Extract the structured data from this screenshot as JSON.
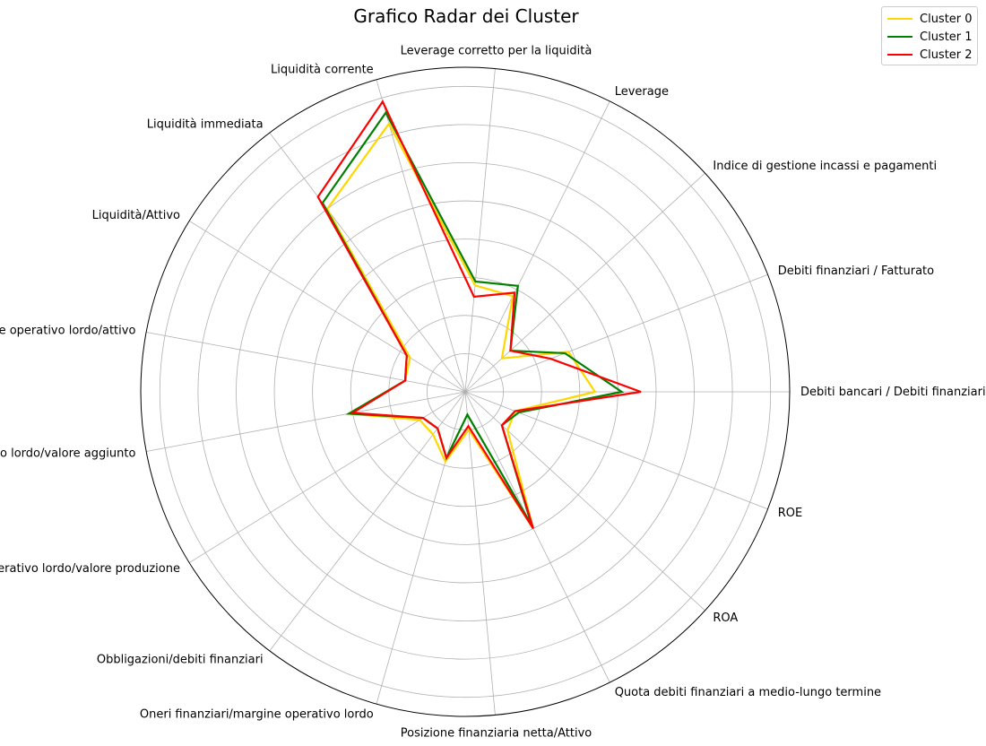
{
  "chart_data": {
    "type": "radar",
    "title": "Grafico Radar dei Cluster",
    "categories": [
      "Debiti bancari / Debiti finanziari",
      "Debiti finanziari / Fatturato",
      "Indice di gestione incassi e pagamenti",
      "Leverage",
      "Leverage corretto per la liquidità",
      "Liquidità corrente",
      "Liquidità immediata",
      "Liquidità/Attivo",
      "Margine operativo lordo/attivo",
      "Margine operativo lordo/valore aggiunto",
      "Margine operativo lordo/valore produzione",
      "Obbligazioni/debiti finanziari",
      "Oneri finanziari/margine operativo lordo",
      "Posizione finanziaria netta/Attivo",
      "Quota debiti finanziari a medio-lungo termine",
      "ROA",
      "ROE"
    ],
    "rlim": [
      0,
      0.85
    ],
    "rticks": [
      0.1,
      0.2,
      0.3,
      0.4,
      0.5,
      0.6,
      0.7,
      0.8
    ],
    "grid": true,
    "legend_position": "top-right",
    "series": [
      {
        "name": "Cluster 0",
        "color": "#FFD700",
        "values": [
          0.34,
          0.29,
          0.13,
          0.28,
          0.28,
          0.73,
          0.6,
          0.17,
          0.16,
          0.31,
          0.14,
          0.14,
          0.19,
          0.1,
          0.4,
          0.15,
          0.14
        ]
      },
      {
        "name": "Cluster 1",
        "color": "#008000",
        "values": [
          0.41,
          0.28,
          0.16,
          0.31,
          0.29,
          0.76,
          0.62,
          0.18,
          0.16,
          0.31,
          0.13,
          0.12,
          0.18,
          0.06,
          0.39,
          0.13,
          0.15
        ]
      },
      {
        "name": "Cluster 2",
        "color": "#FF0000",
        "values": [
          0.46,
          0.24,
          0.16,
          0.29,
          0.25,
          0.79,
          0.64,
          0.18,
          0.16,
          0.3,
          0.13,
          0.12,
          0.18,
          0.09,
          0.4,
          0.13,
          0.14
        ]
      }
    ]
  }
}
